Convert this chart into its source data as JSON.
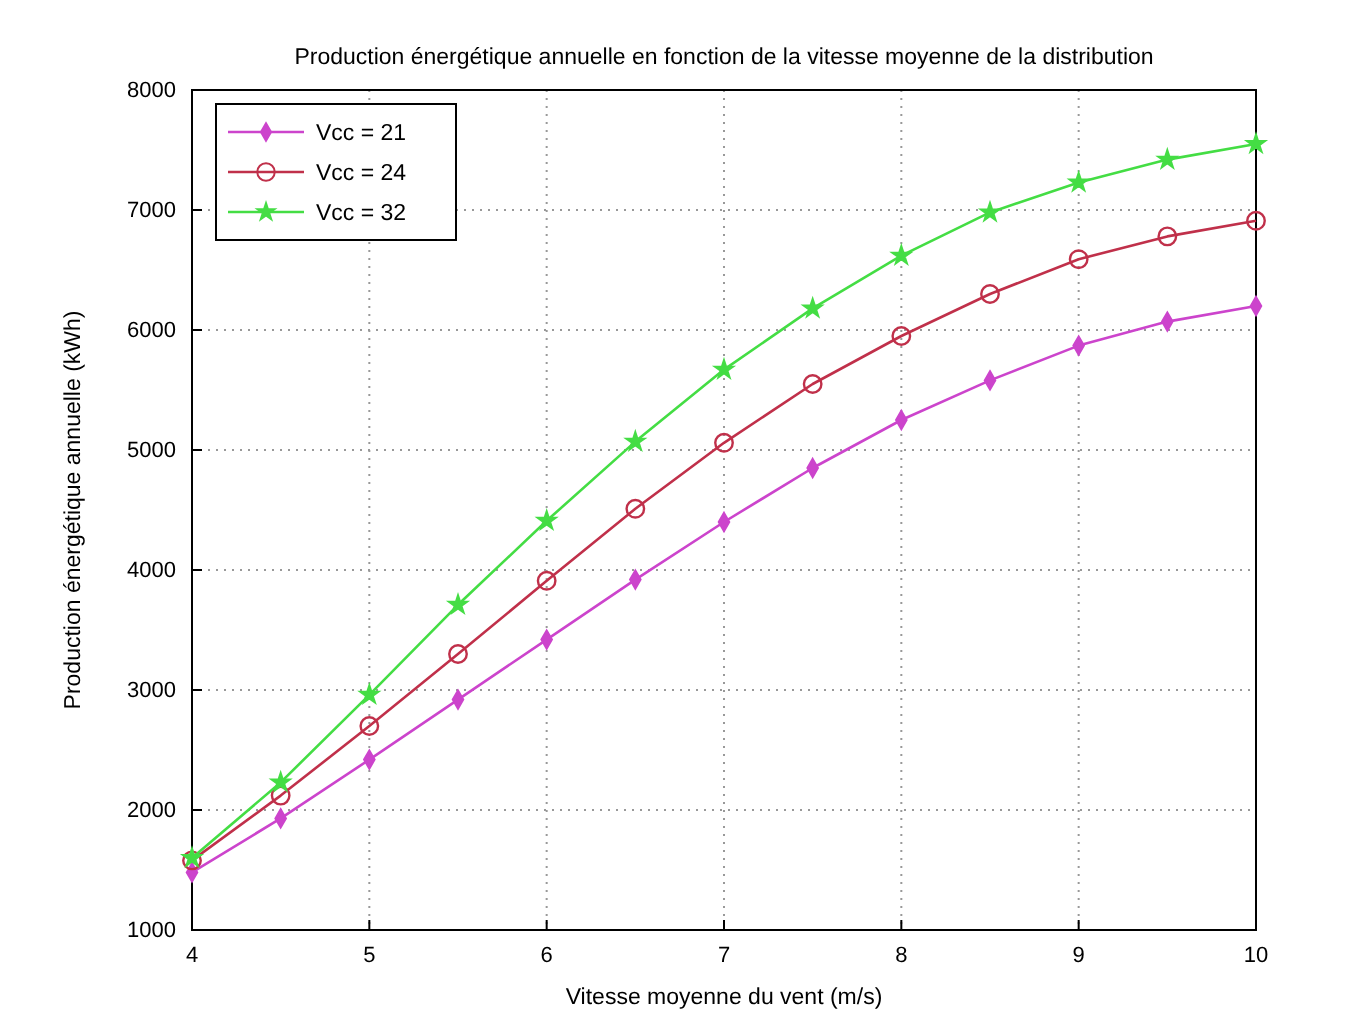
{
  "chart_data": {
    "type": "line",
    "title": "Production énergétique annuelle en fonction de la vitesse moyenne de la distribution",
    "xlabel": "Vitesse moyenne du vent (m/s)",
    "ylabel": "Production énergétique annuelle (kWh)",
    "x": [
      4,
      4.5,
      5,
      5.5,
      6,
      6.5,
      7,
      7.5,
      8,
      8.5,
      9,
      9.5,
      10
    ],
    "series": [
      {
        "name": "Vcc = 21",
        "color": "#cc44cc",
        "marker": "diamond",
        "values": [
          1480,
          1930,
          2420,
          2920,
          3420,
          3920,
          4400,
          4850,
          5250,
          5580,
          5870,
          6070,
          6200
        ]
      },
      {
        "name": "Vcc = 24",
        "color": "#c0304a",
        "marker": "circle",
        "values": [
          1580,
          2120,
          2700,
          3300,
          3910,
          4510,
          5060,
          5550,
          5950,
          6300,
          6590,
          6780,
          6910
        ]
      },
      {
        "name": "Vcc = 32",
        "color": "#44dd44",
        "marker": "star",
        "values": [
          1600,
          2230,
          2960,
          3710,
          4410,
          5070,
          5670,
          6180,
          6620,
          6980,
          7230,
          7420,
          7550
        ]
      }
    ],
    "xlim": [
      4,
      10
    ],
    "xticks": [
      4,
      5,
      6,
      7,
      8,
      9,
      10
    ],
    "ylim": [
      1000,
      8000
    ],
    "yticks": [
      1000,
      2000,
      3000,
      4000,
      5000,
      6000,
      7000,
      8000
    ],
    "grid": true,
    "legend": "top left",
    "line_style": "solid"
  }
}
